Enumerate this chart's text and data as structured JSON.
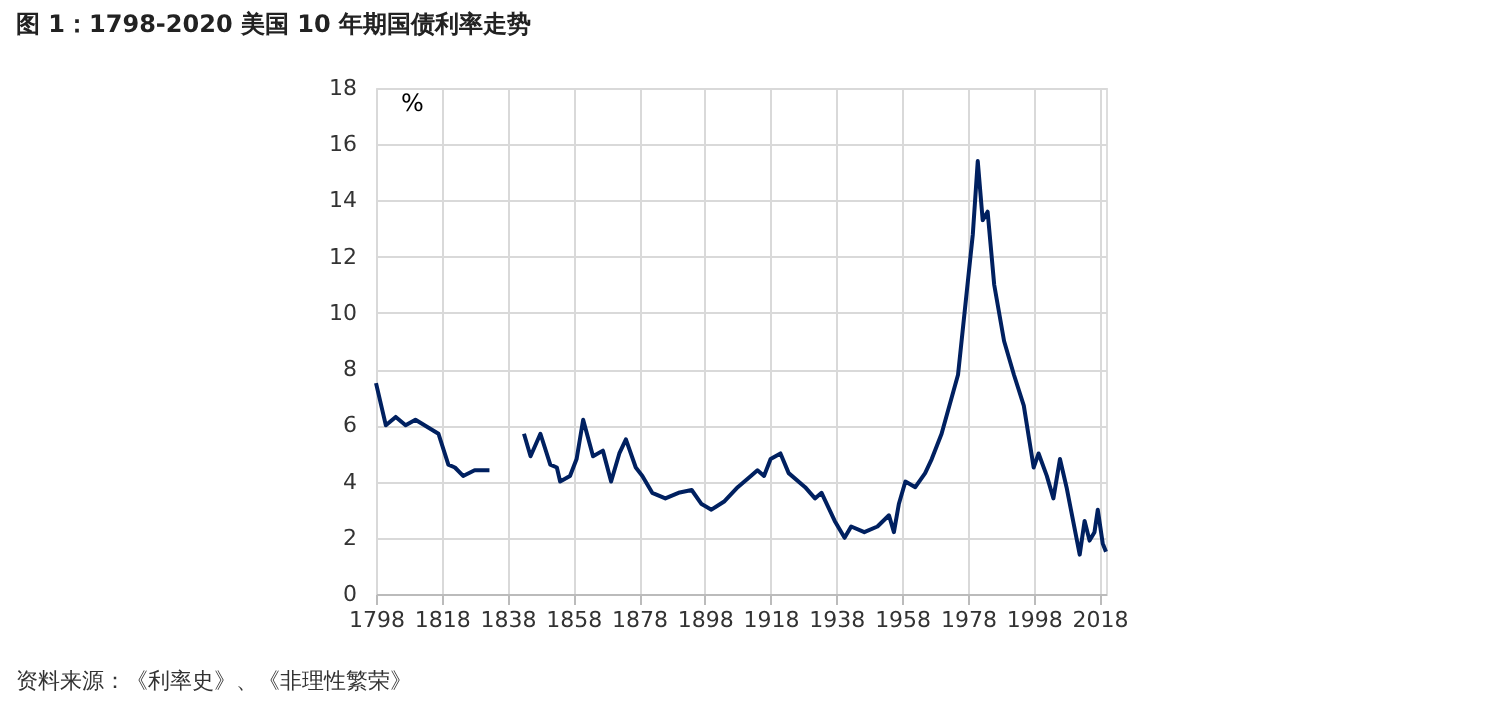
{
  "chart_data": {
    "type": "line",
    "title": "图 1：1798-2020 美国 10 年期国债利率走势",
    "ylabel": "%",
    "annotations": [
      "资料来源：《利率史》、《非理性繁荣》"
    ],
    "x": [
      1798,
      1801,
      1804,
      1807,
      1810,
      1817,
      1820,
      1822,
      1824.5,
      1828,
      1832.5,
      1838,
      1843,
      1845,
      1848,
      1851,
      1853,
      1854,
      1857,
      1859,
      1861,
      1864,
      1867,
      1869.5,
      1872,
      1874,
      1877,
      1879,
      1882,
      1886,
      1890,
      1894,
      1897,
      1900,
      1904,
      1908,
      1912,
      1914,
      1916,
      1918,
      1921,
      1923.5,
      1928.5,
      1931.5,
      1933.5,
      1935.5,
      1937.5,
      1940.5,
      1942.5,
      1946.5,
      1950.5,
      1954,
      1955.5,
      1957,
      1959,
      1962,
      1965,
      1967,
      1970,
      1975,
      1979.5,
      1981,
      1982.5,
      1984,
      1986,
      1989,
      1992,
      1995,
      1998,
      1999.5,
      2002,
      2004,
      2006,
      2008,
      2010,
      2012,
      2013.5,
      2015,
      2016.5,
      2017.5,
      2019,
      2020
    ],
    "series": [
      {
        "color": "#002060",
        "values": [
          7.5,
          6.0,
          6.3,
          6.0,
          6.2,
          5.7,
          4.6,
          4.5,
          4.2,
          4.4,
          4.4,
          null,
          5.7,
          4.9,
          5.7,
          4.6,
          4.5,
          4.0,
          4.2,
          4.8,
          6.2,
          4.9,
          5.1,
          4.0,
          5.0,
          5.5,
          4.5,
          4.2,
          3.6,
          3.4,
          3.6,
          3.7,
          3.2,
          3.0,
          3.3,
          3.8,
          4.2,
          4.4,
          4.2,
          4.8,
          5.0,
          4.3,
          3.8,
          3.4,
          3.6,
          3.1,
          2.6,
          2.0,
          2.4,
          2.2,
          2.4,
          2.8,
          2.2,
          3.2,
          4.0,
          3.8,
          4.3,
          4.8,
          5.7,
          7.8,
          12.8,
          15.4,
          13.3,
          13.6,
          11.0,
          9.0,
          7.8,
          6.7,
          4.5,
          5.0,
          4.2,
          3.4,
          4.8,
          3.8,
          2.6,
          1.4,
          2.6,
          1.9,
          2.2,
          3.0,
          1.8,
          1.5
        ]
      }
    ],
    "xlim": [
      1798,
      2020
    ],
    "xticks": [
      1798,
      1818,
      1838,
      1858,
      1878,
      1898,
      1918,
      1938,
      1958,
      1978,
      1998,
      2018
    ],
    "ylim": [
      0,
      18
    ],
    "yticks": [
      0,
      2,
      4,
      6,
      8,
      10,
      12,
      14,
      16,
      18
    ],
    "grid": true,
    "marker": "none",
    "line_style": "solid"
  }
}
